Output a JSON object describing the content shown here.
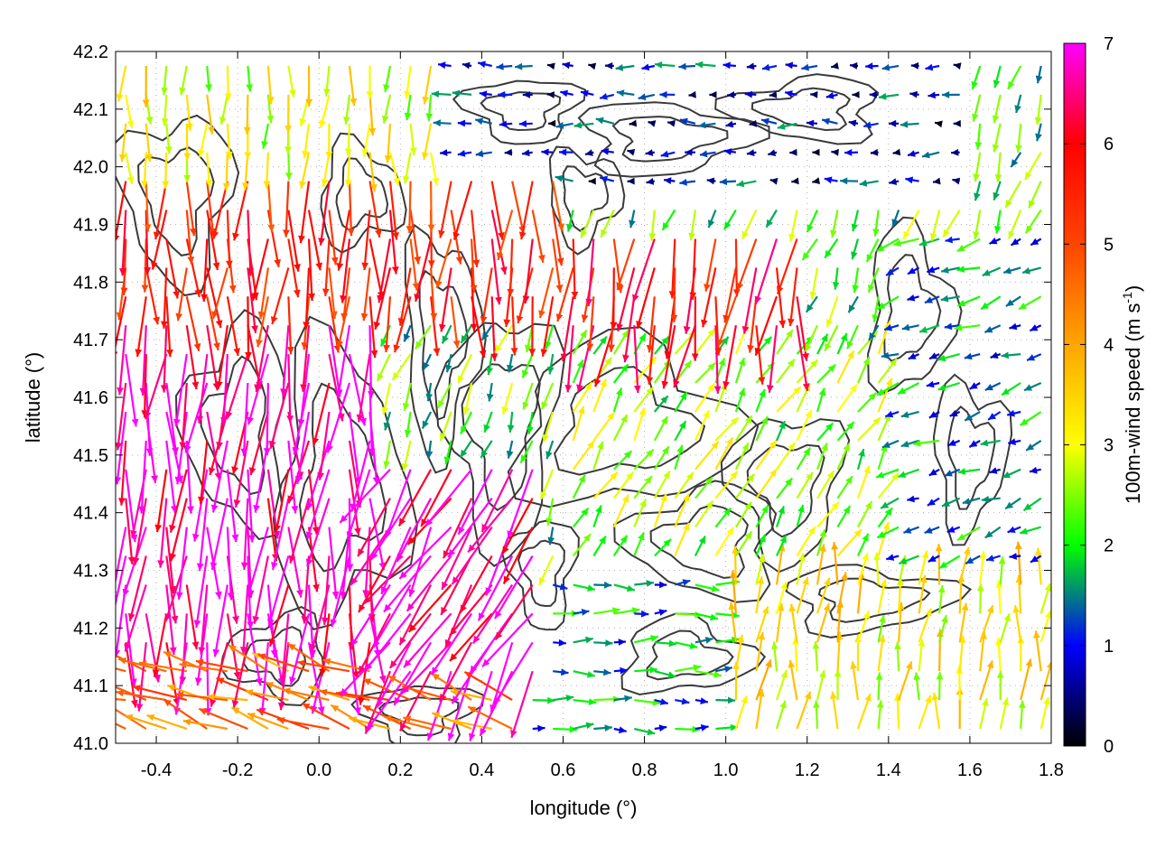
{
  "chart_data": {
    "type": "vector-field",
    "xlabel": "longitude (°)",
    "ylabel": "latitude (°)",
    "xlim": [
      -0.5,
      1.8
    ],
    "ylim": [
      41.0,
      42.2
    ],
    "xticks": [
      {
        "value": -0.4,
        "label": "-0.4"
      },
      {
        "value": -0.2,
        "label": "-0.2"
      },
      {
        "value": 0.0,
        "label": "0.0"
      },
      {
        "value": 0.2,
        "label": "0.2"
      },
      {
        "value": 0.4,
        "label": "0.4"
      },
      {
        "value": 0.6,
        "label": "0.6"
      },
      {
        "value": 0.8,
        "label": "0.8"
      },
      {
        "value": 1.0,
        "label": "1.0"
      },
      {
        "value": 1.2,
        "label": "1.2"
      },
      {
        "value": 1.4,
        "label": "1.4"
      },
      {
        "value": 1.6,
        "label": "1.6"
      },
      {
        "value": 1.8,
        "label": "1.8"
      }
    ],
    "yticks": [
      {
        "value": 41.0,
        "label": "41.0"
      },
      {
        "value": 41.1,
        "label": "41.1"
      },
      {
        "value": 41.2,
        "label": "41.2"
      },
      {
        "value": 41.3,
        "label": "41.3"
      },
      {
        "value": 41.4,
        "label": "41.4"
      },
      {
        "value": 41.5,
        "label": "41.5"
      },
      {
        "value": 41.6,
        "label": "41.6"
      },
      {
        "value": 41.7,
        "label": "41.7"
      },
      {
        "value": 41.8,
        "label": "41.8"
      },
      {
        "value": 41.9,
        "label": "41.9"
      },
      {
        "value": 42.0,
        "label": "42.0"
      },
      {
        "value": 42.1,
        "label": "42.1"
      },
      {
        "value": 42.2,
        "label": "42.2"
      }
    ],
    "grid": true,
    "colorbar": {
      "label_main": "100m-wind speed (m s",
      "label_sup": "-1",
      "label_end": ")",
      "range": [
        0,
        7
      ],
      "ticks": [
        {
          "value": 0,
          "label": "0"
        },
        {
          "value": 1,
          "label": "1"
        },
        {
          "value": 2,
          "label": "2"
        },
        {
          "value": 3,
          "label": "3"
        },
        {
          "value": 4,
          "label": "4"
        },
        {
          "value": 5,
          "label": "5"
        },
        {
          "value": 6,
          "label": "6"
        },
        {
          "value": 7,
          "label": "7"
        }
      ],
      "stops": [
        {
          "value": 0.0,
          "color": "#000000"
        },
        {
          "value": 0.5,
          "color": "#000080"
        },
        {
          "value": 1.0,
          "color": "#0000ff"
        },
        {
          "value": 1.5,
          "color": "#008080"
        },
        {
          "value": 2.0,
          "color": "#00ff00"
        },
        {
          "value": 3.0,
          "color": "#ffff00"
        },
        {
          "value": 4.0,
          "color": "#ffa500"
        },
        {
          "value": 5.0,
          "color": "#ff4500"
        },
        {
          "value": 6.0,
          "color": "#ff0000"
        },
        {
          "value": 7.0,
          "color": "#ff00ff"
        }
      ]
    },
    "regions": [
      {
        "lon": [
          -0.5,
          0.15
        ],
        "lat": [
          41.15,
          41.75
        ],
        "speed": 6.8,
        "direction_deg": 267
      },
      {
        "lon": [
          0.15,
          0.55
        ],
        "lat": [
          41.1,
          41.5
        ],
        "speed": 6.8,
        "direction_deg": 240
      },
      {
        "lon": [
          -0.5,
          0.6
        ],
        "lat": [
          41.75,
          42.0
        ],
        "speed": 5.5,
        "direction_deg": 268
      },
      {
        "lon": [
          0.6,
          1.2
        ],
        "lat": [
          41.72,
          41.9
        ],
        "speed": 5.8,
        "direction_deg": 265
      },
      {
        "lon": [
          -0.5,
          0.3
        ],
        "lat": [
          42.0,
          42.2
        ],
        "speed": 3.0,
        "direction_deg": 270
      },
      {
        "lon": [
          0.3,
          1.6
        ],
        "lat": [
          41.95,
          42.2
        ],
        "speed": 0.9,
        "direction_deg": 180
      },
      {
        "lon": [
          1.0,
          1.8
        ],
        "lat": [
          41.0,
          41.3
        ],
        "speed": 3.2,
        "direction_deg": 85
      },
      {
        "lon": [
          0.6,
          1.4
        ],
        "lat": [
          41.3,
          41.7
        ],
        "speed": 2.5,
        "direction_deg": 60
      },
      {
        "lon": [
          1.4,
          1.8
        ],
        "lat": [
          41.3,
          41.9
        ],
        "speed": 1.5,
        "direction_deg": 200
      },
      {
        "lon": [
          -0.5,
          0.5
        ],
        "lat": [
          41.0,
          41.15
        ],
        "speed": 4.5,
        "direction_deg": 160
      },
      {
        "lon": [
          0.5,
          1.0
        ],
        "lat": [
          41.0,
          41.3
        ],
        "speed": 1.6,
        "direction_deg": 0
      }
    ]
  }
}
